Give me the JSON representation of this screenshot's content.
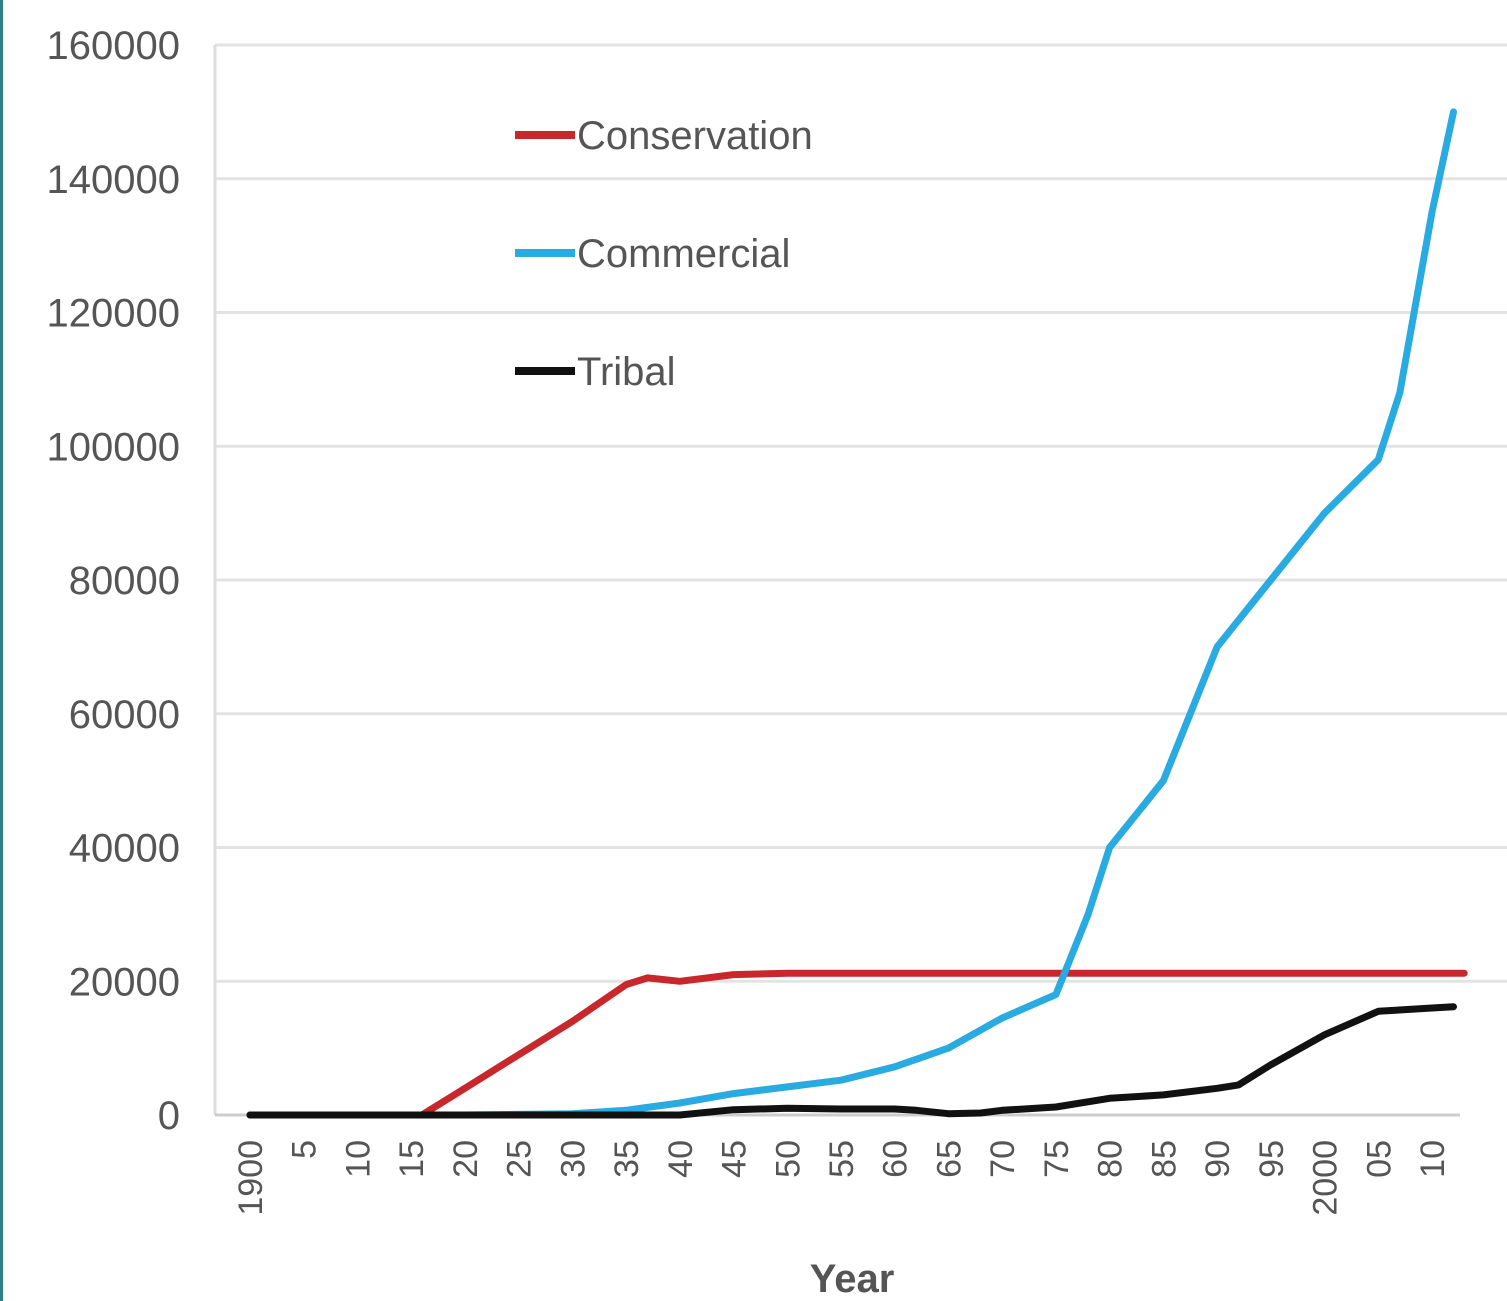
{
  "chart_data": {
    "type": "line",
    "xlabel": "Year",
    "ylabel": "",
    "ylim": [
      0,
      160000
    ],
    "yticks": [
      0,
      20000,
      40000,
      60000,
      80000,
      100000,
      120000,
      140000,
      160000
    ],
    "ytick_labels": [
      "0",
      "20000",
      "40000",
      "60000",
      "80000",
      "100000",
      "120000",
      "140000",
      "160000"
    ],
    "xlim": [
      1900,
      2013
    ],
    "xticks": [
      1900,
      1905,
      1910,
      1915,
      1920,
      1925,
      1930,
      1935,
      1940,
      1945,
      1950,
      1955,
      1960,
      1965,
      1970,
      1975,
      1980,
      1985,
      1990,
      1995,
      2000,
      2005,
      2010
    ],
    "xtick_labels": [
      "1900",
      "5",
      "10",
      "15",
      "20",
      "25",
      "30",
      "35",
      "40",
      "45",
      "50",
      "55",
      "60",
      "65",
      "70",
      "75",
      "80",
      "85",
      "90",
      "95",
      "2000",
      "05",
      "10"
    ],
    "grid": true,
    "legend_position": "top-center",
    "series": [
      {
        "name": "Conservation",
        "color": "#c8282c",
        "points": [
          [
            1900,
            0
          ],
          [
            1916,
            0
          ],
          [
            1920,
            4000
          ],
          [
            1925,
            9000
          ],
          [
            1930,
            14000
          ],
          [
            1935,
            19500
          ],
          [
            1937,
            20500
          ],
          [
            1940,
            20000
          ],
          [
            1945,
            21000
          ],
          [
            1950,
            21200
          ],
          [
            1960,
            21200
          ],
          [
            1970,
            21200
          ],
          [
            1980,
            21200
          ],
          [
            1990,
            21200
          ],
          [
            2000,
            21200
          ],
          [
            2010,
            21200
          ],
          [
            2013,
            21200
          ]
        ]
      },
      {
        "name": "Commercial",
        "color": "#29abe2",
        "points": [
          [
            1900,
            0
          ],
          [
            1920,
            0
          ],
          [
            1930,
            200
          ],
          [
            1935,
            700
          ],
          [
            1940,
            1800
          ],
          [
            1945,
            3200
          ],
          [
            1950,
            4200
          ],
          [
            1955,
            5200
          ],
          [
            1960,
            7200
          ],
          [
            1965,
            10000
          ],
          [
            1970,
            14500
          ],
          [
            1975,
            18000
          ],
          [
            1978,
            30000
          ],
          [
            1980,
            40000
          ],
          [
            1983,
            46000
          ],
          [
            1985,
            50000
          ],
          [
            1988,
            62000
          ],
          [
            1990,
            70000
          ],
          [
            1995,
            80000
          ],
          [
            2000,
            90000
          ],
          [
            2005,
            98000
          ],
          [
            2007,
            108000
          ],
          [
            2010,
            135000
          ],
          [
            2012,
            150000
          ]
        ]
      },
      {
        "name": "Tribal",
        "color": "#111111",
        "points": [
          [
            1900,
            0
          ],
          [
            1940,
            0
          ],
          [
            1945,
            800
          ],
          [
            1950,
            1000
          ],
          [
            1955,
            900
          ],
          [
            1960,
            900
          ],
          [
            1962,
            700
          ],
          [
            1965,
            200
          ],
          [
            1968,
            300
          ],
          [
            1970,
            700
          ],
          [
            1975,
            1200
          ],
          [
            1980,
            2500
          ],
          [
            1985,
            3000
          ],
          [
            1990,
            4000
          ],
          [
            1992,
            4500
          ],
          [
            1995,
            7500
          ],
          [
            2000,
            12000
          ],
          [
            2005,
            15500
          ],
          [
            2010,
            16000
          ],
          [
            2012,
            16200
          ]
        ]
      }
    ]
  }
}
